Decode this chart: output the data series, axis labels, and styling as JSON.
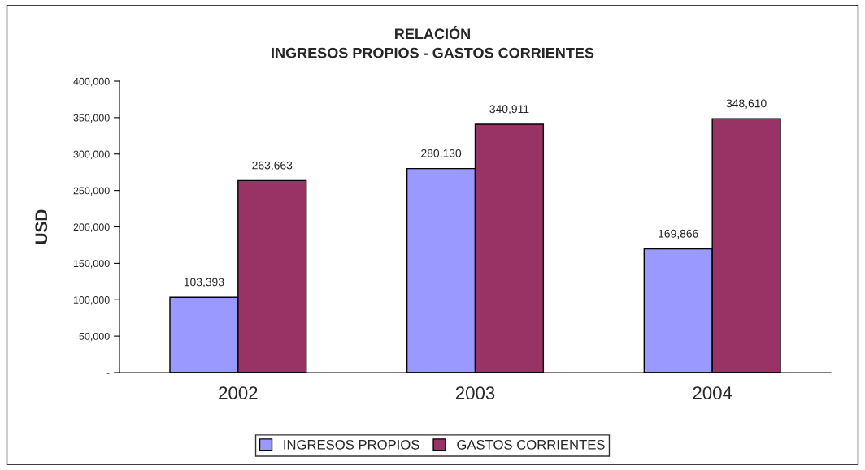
{
  "chart_data": {
    "type": "bar",
    "title": "RELACIÓN\nINGRESOS PROPIOS - GASTOS CORRIENTES",
    "ylabel": "USD",
    "categories": [
      "2002",
      "2003",
      "2004"
    ],
    "series": [
      {
        "name": "INGRESOS PROPIOS",
        "color": "#9999ff",
        "values": [
          103393,
          280130,
          169866
        ],
        "value_labels": [
          "103,393",
          "280,130",
          "169,866"
        ]
      },
      {
        "name": "GASTOS CORRIENTES",
        "color": "#993366",
        "values": [
          263663,
          340911,
          348610
        ],
        "value_labels": [
          "263,663",
          "340,911",
          "348,610"
        ]
      }
    ],
    "ylim": [
      0,
      400000
    ],
    "yticks": [
      {
        "value": 0,
        "label": "-"
      },
      {
        "value": 50000,
        "label": "50,000"
      },
      {
        "value": 100000,
        "label": "100,000"
      },
      {
        "value": 150000,
        "label": "150,000"
      },
      {
        "value": 200000,
        "label": "200,000"
      },
      {
        "value": 250000,
        "label": "250,000"
      },
      {
        "value": 300000,
        "label": "300,000"
      },
      {
        "value": 350000,
        "label": "350,000"
      },
      {
        "value": 400000,
        "label": "400,000"
      }
    ],
    "grid": false,
    "legend": "bottom"
  }
}
